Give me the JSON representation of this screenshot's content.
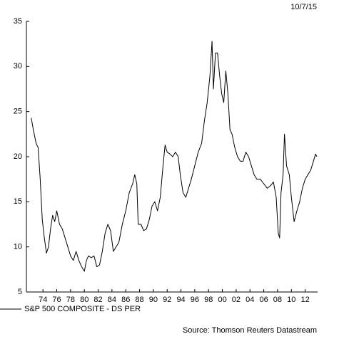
{
  "chart_data": {
    "type": "line",
    "date": "10/7/15",
    "source": "Source: Thomson Reuters Datastream",
    "x": [
      1972.3,
      1972.6,
      1973.0,
      1973.3,
      1973.6,
      1973.9,
      1974.2,
      1974.5,
      1974.8,
      1975.1,
      1975.4,
      1975.7,
      1976.0,
      1976.4,
      1976.8,
      1977.2,
      1977.6,
      1978.0,
      1978.4,
      1978.8,
      1979.2,
      1979.6,
      1980.0,
      1980.3,
      1980.6,
      1981.0,
      1981.4,
      1981.8,
      1982.2,
      1982.6,
      1983.0,
      1983.4,
      1983.8,
      1984.2,
      1984.6,
      1985.0,
      1985.5,
      1986.0,
      1986.5,
      1987.0,
      1987.3,
      1987.6,
      1987.8,
      1988.2,
      1988.6,
      1989.0,
      1989.4,
      1989.8,
      1990.2,
      1990.6,
      1991.0,
      1991.4,
      1991.7,
      1992.0,
      1992.4,
      1992.8,
      1993.2,
      1993.6,
      1993.9,
      1994.3,
      1994.7,
      1995.1,
      1995.5,
      1996.0,
      1996.5,
      1997.0,
      1997.4,
      1997.8,
      1998.2,
      1998.5,
      1998.7,
      1999.0,
      1999.3,
      1999.6,
      1999.9,
      2000.2,
      2000.5,
      2000.8,
      2001.1,
      2001.4,
      2001.8,
      2002.2,
      2002.6,
      2003.0,
      2003.4,
      2003.8,
      2004.2,
      2004.6,
      2005.0,
      2005.5,
      2006.0,
      2006.5,
      2007.0,
      2007.4,
      2007.8,
      2008.1,
      2008.3,
      2008.5,
      2008.8,
      2009.0,
      2009.3,
      2009.7,
      2010.0,
      2010.4,
      2010.8,
      2011.2,
      2011.6,
      2012.0,
      2012.4,
      2012.8,
      2013.2,
      2013.5,
      2013.7
    ],
    "series": [
      {
        "name": "S&P 500 COMPOSITE - DS PER",
        "color": "#000000",
        "values": [
          24.3,
          23,
          21.5,
          21,
          17.5,
          13,
          11,
          9.3,
          10,
          12,
          13.5,
          12.8,
          14,
          12.5,
          12,
          11,
          10,
          9,
          8.5,
          9.5,
          8.5,
          7.8,
          7.3,
          8.5,
          9,
          8.8,
          9,
          7.8,
          8,
          9.5,
          11.5,
          12.5,
          11.8,
          9.5,
          10,
          10.5,
          12.5,
          14,
          16,
          17,
          18,
          17,
          12.5,
          12.5,
          11.8,
          12,
          13,
          14.5,
          15,
          14,
          15.5,
          19,
          21.3,
          20.5,
          20.3,
          20,
          20.5,
          20,
          18,
          16,
          15.5,
          16.5,
          17.5,
          19,
          20.5,
          21.5,
          24,
          26,
          29,
          32.8,
          27.5,
          31.5,
          31.5,
          29,
          27,
          26,
          29.5,
          27,
          23,
          22.5,
          21,
          20,
          19.5,
          19.5,
          20.5,
          20,
          19,
          18,
          17.5,
          17.5,
          17,
          16.5,
          16.8,
          17.2,
          15.5,
          11.5,
          11,
          16,
          18,
          22.5,
          19,
          18,
          15.5,
          12.8,
          14,
          15,
          16.5,
          17.5,
          18,
          18.5,
          19.5,
          20.3,
          20
        ]
      }
    ],
    "xlim": [
      1971.6,
      2013.8
    ],
    "xticks": [
      {
        "value": 1974,
        "label": "74"
      },
      {
        "value": 1976,
        "label": "76"
      },
      {
        "value": 1978,
        "label": "78"
      },
      {
        "value": 1980,
        "label": "80"
      },
      {
        "value": 1982,
        "label": "82"
      },
      {
        "value": 1984,
        "label": "84"
      },
      {
        "value": 1986,
        "label": "86"
      },
      {
        "value": 1988,
        "label": "88"
      },
      {
        "value": 1990,
        "label": "90"
      },
      {
        "value": 1992,
        "label": "92"
      },
      {
        "value": 1994,
        "label": "94"
      },
      {
        "value": 1996,
        "label": "96"
      },
      {
        "value": 1998,
        "label": "98"
      },
      {
        "value": 2000,
        "label": "00"
      },
      {
        "value": 2002,
        "label": "02"
      },
      {
        "value": 2004,
        "label": "04"
      },
      {
        "value": 2006,
        "label": "06"
      },
      {
        "value": 2008,
        "label": "08"
      },
      {
        "value": 2010,
        "label": "10"
      },
      {
        "value": 2012,
        "label": "12"
      }
    ],
    "ylim": [
      5,
      35
    ],
    "yticks": [
      5,
      10,
      15,
      20,
      25,
      30,
      35
    ],
    "grid": false
  }
}
